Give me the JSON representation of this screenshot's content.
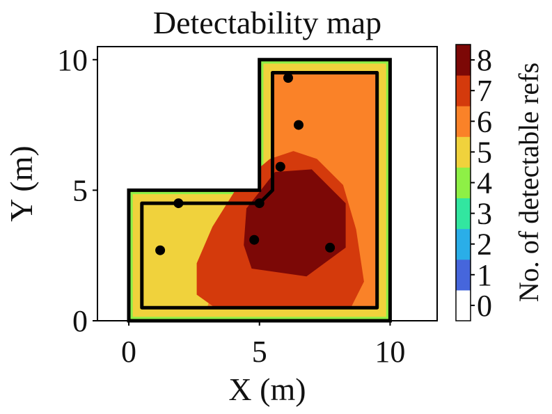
{
  "chart_data": {
    "type": "heatmap",
    "title": "Detectability map",
    "xlabel": "X (m)",
    "ylabel": "Y (m)",
    "xlim": [
      -1.2,
      11.8
    ],
    "ylim": [
      0,
      10.5
    ],
    "xticks": [
      0,
      5,
      10
    ],
    "yticks": [
      0,
      5,
      10
    ],
    "colorbar": {
      "label": "No. of detectable refs",
      "levels": [
        0,
        1,
        2,
        3,
        4,
        5,
        6,
        7,
        8
      ],
      "tick_labels": [
        "0",
        "1",
        "2",
        "3",
        "4",
        "5",
        "6",
        "7",
        "8"
      ],
      "colors": [
        "#ffffff",
        "#4666dc",
        "#2aaee8",
        "#32e6a0",
        "#8ef046",
        "#f0d23c",
        "#fa8228",
        "#d43a0c",
        "#7c0806"
      ]
    },
    "room_outline": [
      [
        0,
        0
      ],
      [
        10,
        0
      ],
      [
        10,
        10
      ],
      [
        5,
        10
      ],
      [
        5,
        5
      ],
      [
        0,
        5
      ],
      [
        0,
        0
      ]
    ],
    "inner_outline": [
      [
        0.5,
        0.5
      ],
      [
        9.5,
        0.5
      ],
      [
        9.5,
        9.5
      ],
      [
        5.5,
        9.5
      ],
      [
        5.5,
        5
      ],
      [
        5,
        4.5
      ],
      [
        0.5,
        4.5
      ],
      [
        0.5,
        0.5
      ]
    ],
    "reflectors": [
      {
        "x": 1.2,
        "y": 2.7
      },
      {
        "x": 1.9,
        "y": 4.5
      },
      {
        "x": 4.8,
        "y": 3.1
      },
      {
        "x": 5.0,
        "y": 4.5
      },
      {
        "x": 5.8,
        "y": 5.9
      },
      {
        "x": 6.1,
        "y": 9.3
      },
      {
        "x": 6.5,
        "y": 7.5
      },
      {
        "x": 7.7,
        "y": 2.8
      }
    ],
    "region_levels": {
      "room_edge": 4,
      "outer_band": 5,
      "bottom_left_triangle": 5,
      "main_area": 6,
      "inner_blob": 7,
      "core_blob": 8
    },
    "regions": {
      "inner_blob": [
        [
          3.3,
          0.5
        ],
        [
          8.5,
          0.5
        ],
        [
          9.0,
          1.5
        ],
        [
          8.7,
          3.5
        ],
        [
          8.2,
          5.2
        ],
        [
          7.2,
          6.2
        ],
        [
          6.3,
          6.5
        ],
        [
          5.4,
          6.2
        ],
        [
          4.2,
          5.2
        ],
        [
          3.2,
          3.6
        ],
        [
          2.6,
          2.2
        ],
        [
          2.6,
          1.0
        ]
      ],
      "core_blob": [
        [
          4.7,
          2.0
        ],
        [
          6.8,
          1.7
        ],
        [
          8.3,
          2.8
        ],
        [
          8.3,
          4.5
        ],
        [
          7.0,
          5.8
        ],
        [
          5.6,
          5.7
        ],
        [
          4.5,
          4.3
        ],
        [
          4.4,
          2.9
        ]
      ],
      "bottom_left_triangle": [
        [
          0.5,
          0.5
        ],
        [
          3.0,
          0.5
        ],
        [
          3.9,
          3.6
        ],
        [
          3.7,
          4.6
        ],
        [
          0.5,
          4.6
        ]
      ]
    }
  }
}
